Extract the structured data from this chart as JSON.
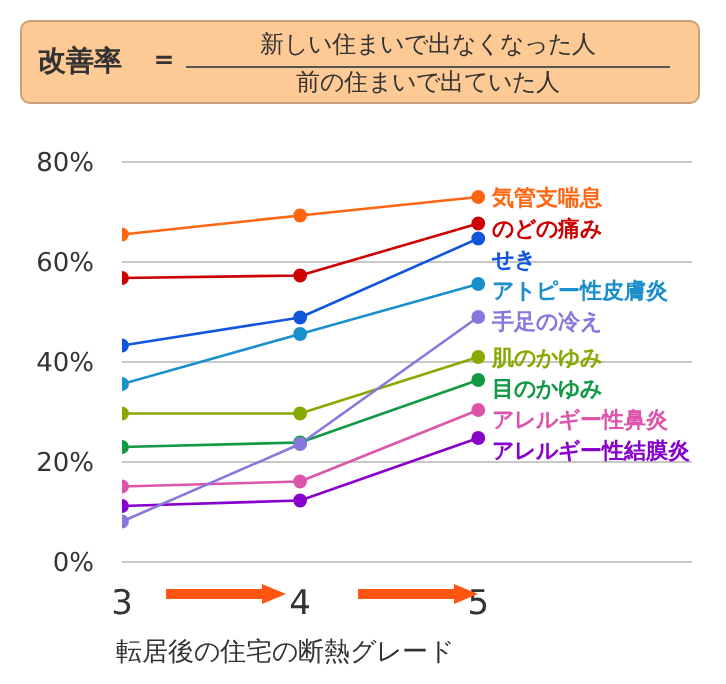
{
  "chart_data": {
    "type": "line",
    "title": "改善率",
    "annotations": [
      "＝",
      "新しい住まいで出なくなった人",
      "前の住まいで出ていた人"
    ],
    "xlabel": "転居後の住宅の断熱グレード",
    "x": [
      3,
      4,
      5
    ],
    "xlim": [
      3,
      6.2
    ],
    "xticks": [
      3,
      4,
      5
    ],
    "ylim": [
      0,
      80
    ],
    "yticks": [
      {
        "value": 0,
        "label": "0%"
      },
      {
        "value": 20,
        "label": "20%"
      },
      {
        "value": 40,
        "label": "40%"
      },
      {
        "value": 60,
        "label": "60%"
      },
      {
        "value": 80,
        "label": "80%"
      }
    ],
    "grid": "y",
    "marker": "circle",
    "line_style": "solid",
    "series": [
      {
        "name": "気管支喘息",
        "color": "#ff6611",
        "values": [
          65.5,
          69.3,
          73
        ]
      },
      {
        "name": "のどの痛み",
        "color": "#cc0000",
        "values": [
          56.8,
          57.3,
          67.7
        ]
      },
      {
        "name": "せき",
        "color": "#1155dd",
        "values": [
          43.3,
          48.9,
          64.7
        ]
      },
      {
        "name": "アトピー性皮膚炎",
        "color": "#1a8fcc",
        "values": [
          35.6,
          45.6,
          55.6
        ]
      },
      {
        "name": "手足の冷え",
        "color": "#8877dd",
        "values": [
          8.1,
          23.6,
          49
        ]
      },
      {
        "name": "肌のかゆみ",
        "color": "#88aa00",
        "values": [
          29.7,
          29.7,
          41
        ]
      },
      {
        "name": "目のかゆみ",
        "color": "#119944",
        "values": [
          23,
          23.9,
          36.4
        ]
      },
      {
        "name": "アレルギー性鼻炎",
        "color": "#dd55aa",
        "values": [
          15.1,
          16.1,
          30.4
        ]
      },
      {
        "name": "アレルギー性結膜炎",
        "color": "#8800cc",
        "values": [
          11.2,
          12.3,
          24.8
        ]
      }
    ]
  }
}
